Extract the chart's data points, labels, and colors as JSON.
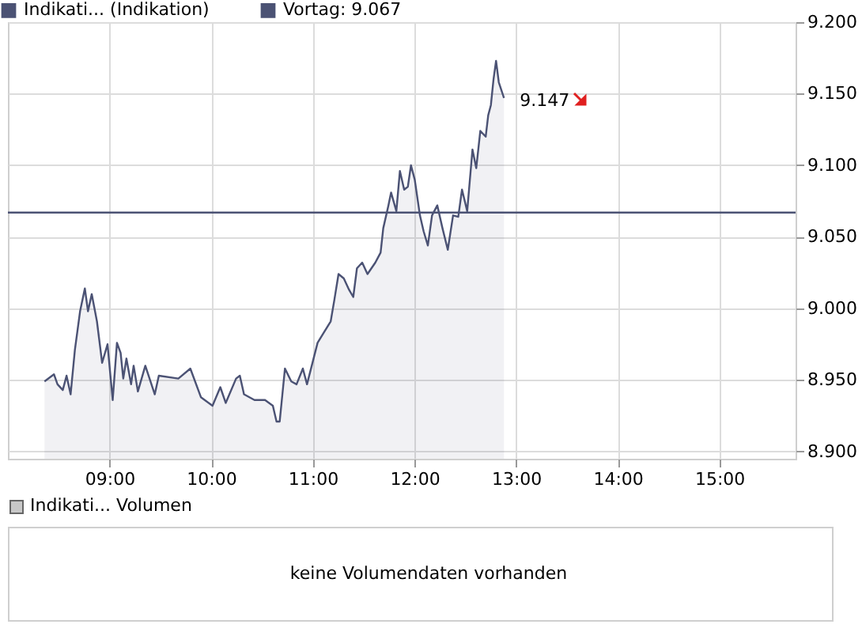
{
  "chart_data": [
    {
      "type": "area",
      "x": [
        8.36,
        8.453,
        8.488,
        8.54,
        8.577,
        8.617,
        8.659,
        8.71,
        8.757,
        8.788,
        8.825,
        8.876,
        8.927,
        8.98,
        9.031,
        9.073,
        9.109,
        9.135,
        9.166,
        9.212,
        9.237,
        9.279,
        9.352,
        9.445,
        9.485,
        9.677,
        9.795,
        9.899,
        10.013,
        10.09,
        10.143,
        10.245,
        10.282,
        10.323,
        10.426,
        10.53,
        10.607,
        10.643,
        10.674,
        10.726,
        10.788,
        10.84,
        10.902,
        10.943,
        11.047,
        11.098,
        11.176,
        11.212,
        11.253,
        11.305,
        11.357,
        11.398,
        11.434,
        11.486,
        11.538,
        11.615,
        11.667,
        11.693,
        11.744,
        11.77,
        11.822,
        11.857,
        11.899,
        11.935,
        11.966,
        12.003,
        12.054,
        12.09,
        12.132,
        12.173,
        12.225,
        12.276,
        12.328,
        12.38,
        12.431,
        12.468,
        12.519,
        12.571,
        12.608,
        12.648,
        12.701,
        12.726,
        12.752,
        12.778,
        12.803,
        12.83,
        12.881
      ],
      "series": [
        {
          "name": "Indikati... (Indikation)",
          "color": "#4b5274",
          "values": [
            8949,
            8954,
            8947,
            8943,
            8953,
            8940,
            8971,
            8998,
            9014,
            8998,
            9010,
            8991,
            8962,
            8975,
            8936,
            8976,
            8969,
            8951,
            8965,
            8947,
            8960,
            8942,
            8960,
            8940,
            8953,
            8951,
            8958,
            8938,
            8932,
            8945,
            8934,
            8951,
            8953,
            8940,
            8936,
            8936,
            8932,
            8921,
            8921,
            8958,
            8949,
            8947,
            8958,
            8947,
            8976,
            8982,
            8991,
            9006,
            9024,
            9021,
            9013,
            9008,
            9028,
            9032,
            9024,
            9032,
            9039,
            9056,
            9072,
            9081,
            9068,
            9096,
            9083,
            9085,
            9100,
            9090,
            9065,
            9054,
            9044,
            9065,
            9072,
            9056,
            9041,
            9065,
            9064,
            9083,
            9068,
            9111,
            9098,
            9124,
            9120,
            9135,
            9142,
            9160,
            9173,
            9158,
            9147
          ]
        }
      ],
      "xlim": [
        8.0,
        15.75
      ],
      "xticks": [
        {
          "value": 9,
          "label": "09:00"
        },
        {
          "value": 10,
          "label": "10:00"
        },
        {
          "value": 11,
          "label": "11:00"
        },
        {
          "value": 12,
          "label": "12:00"
        },
        {
          "value": 13,
          "label": "13:00"
        },
        {
          "value": 14,
          "label": "14:00"
        },
        {
          "value": 15,
          "label": "15:00"
        }
      ],
      "ylim": [
        8895,
        9200
      ],
      "yticks": [
        {
          "value": 8900,
          "label": "8.900"
        },
        {
          "value": 8950,
          "label": "8.950"
        },
        {
          "value": 9000,
          "label": "9.000"
        },
        {
          "value": 9050,
          "label": "9.050"
        },
        {
          "value": 9100,
          "label": "9.100"
        },
        {
          "value": 9150,
          "label": "9.150"
        },
        {
          "value": 9200,
          "label": "9.200"
        }
      ],
      "ref_lines": [
        {
          "axis": "y",
          "value": 9067,
          "label": "Vortag: 9.067",
          "color": "#4b5274"
        }
      ],
      "annotations": [
        {
          "text": "9.147",
          "x": 12.881,
          "y": 9147
        }
      ],
      "grid": true,
      "legend": "top"
    },
    {
      "type": "other",
      "title": "Indikati... Volumen",
      "annotations": [
        "keine Volumendaten vorhanden"
      ]
    }
  ]
}
